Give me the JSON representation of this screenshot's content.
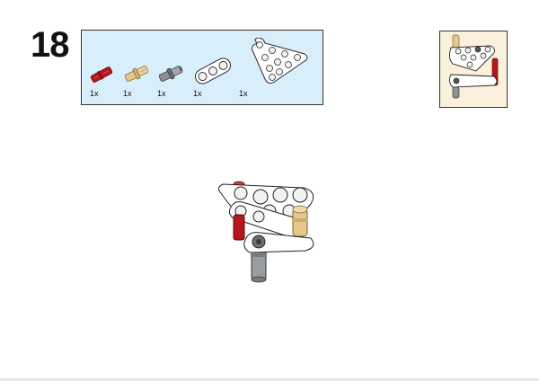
{
  "step": {
    "number": "18"
  },
  "parts_list": {
    "items": [
      {
        "name": "red-axle-pin-icon",
        "qty": "1x",
        "color": "#b5181c"
      },
      {
        "name": "tan-axle-pin-icon",
        "qty": "1x",
        "color": "#e6c88c"
      },
      {
        "name": "grey-connector-pin-icon",
        "qty": "1x",
        "color": "#7a7d80"
      },
      {
        "name": "white-beam-3-icon",
        "qty": "1x",
        "color": "#ffffff"
      },
      {
        "name": "white-triangle-plate-icon",
        "qty": "1x",
        "color": "#ffffff"
      }
    ],
    "background": "#d9eefb"
  },
  "subassembly": {
    "background": "#faf1dc"
  }
}
